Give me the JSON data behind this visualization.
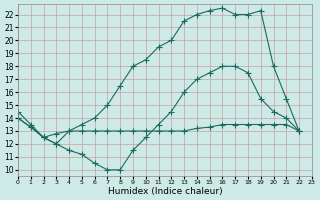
{
  "background_color": "#ceeae6",
  "grid_color": "#c8a0a0",
  "line_color": "#1a6b5e",
  "marker": "+",
  "markersize": 4,
  "linewidth": 0.8,
  "series": [
    {
      "x": [
        0,
        1,
        2,
        3,
        4,
        5,
        6,
        7,
        8,
        9,
        10,
        11,
        12,
        13,
        14,
        15,
        16,
        17,
        18,
        19,
        20,
        21,
        22
      ],
      "y": [
        14.0,
        13.3,
        12.5,
        12.8,
        13.0,
        13.0,
        13.0,
        13.0,
        13.0,
        13.0,
        13.0,
        13.0,
        13.0,
        13.0,
        13.2,
        13.3,
        13.5,
        13.5,
        13.5,
        13.5,
        13.5,
        13.5,
        13.0
      ]
    },
    {
      "x": [
        0,
        1,
        2,
        3,
        4,
        5,
        6,
        7,
        8,
        9,
        10,
        11,
        12,
        13,
        14,
        15,
        16,
        17,
        18,
        19,
        20,
        21,
        22
      ],
      "y": [
        14.0,
        13.3,
        12.5,
        12.0,
        11.5,
        11.2,
        10.5,
        10.0,
        10.0,
        11.5,
        12.5,
        13.5,
        14.5,
        16.0,
        17.0,
        17.5,
        18.0,
        18.0,
        17.5,
        15.5,
        14.5,
        14.0,
        13.0
      ]
    },
    {
      "x": [
        0,
        1,
        2,
        3,
        4,
        5,
        6,
        7,
        8,
        9,
        10,
        11,
        12,
        13,
        14,
        15,
        16,
        17,
        18,
        19,
        20,
        21,
        22
      ],
      "y": [
        14.5,
        13.5,
        12.5,
        12.0,
        13.0,
        13.5,
        14.0,
        15.0,
        16.5,
        18.0,
        18.5,
        19.5,
        20.0,
        21.5,
        22.0,
        22.3,
        22.5,
        22.0,
        22.0,
        22.3,
        18.0,
        15.5,
        13.0
      ]
    }
  ],
  "xlim": [
    0,
    23
  ],
  "ylim": [
    9.5,
    22.8
  ],
  "yticks": [
    10,
    11,
    12,
    13,
    14,
    15,
    16,
    17,
    18,
    19,
    20,
    21,
    22
  ],
  "xticks": [
    0,
    1,
    2,
    3,
    4,
    5,
    6,
    7,
    8,
    9,
    10,
    11,
    12,
    13,
    14,
    15,
    16,
    17,
    18,
    19,
    20,
    21,
    22,
    23
  ],
  "xlabel": "Humidex (Indice chaleur)",
  "tick_fontsize": 5.5,
  "label_fontsize": 6.5
}
